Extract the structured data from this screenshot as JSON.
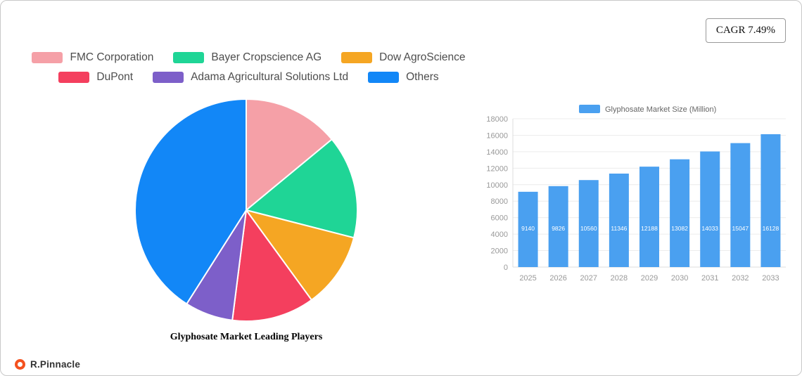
{
  "page": {
    "cagr_label": "CAGR 7.49%",
    "brand": "R.Pinnacle"
  },
  "chart_data": [
    {
      "type": "pie",
      "title": "Glyphosate Market Leading Players",
      "labels": [
        "FMC Corporation",
        "Bayer Cropscience AG",
        "Dow AgroScience",
        "DuPont",
        "Adama Agricultural Solutions Ltd",
        "Others"
      ],
      "values": [
        14,
        15,
        11,
        12,
        7,
        41
      ],
      "colors": [
        "#F5A0A7",
        "#1FD596",
        "#F5A623",
        "#F43F5E",
        "#7D5FC9",
        "#1287F7"
      ],
      "legend_position": "top",
      "legend_rows": [
        [
          0,
          1,
          2
        ],
        [
          3,
          4,
          5
        ]
      ],
      "start_angle_deg": 0,
      "direction": "clockwise"
    },
    {
      "type": "bar",
      "legend": "Glyphosate Market Size (Million)",
      "categories": [
        "2025",
        "2026",
        "2027",
        "2028",
        "2029",
        "2030",
        "2031",
        "2032",
        "2033"
      ],
      "values": [
        9140,
        9826,
        10560,
        11346,
        12188,
        13082,
        14033,
        15047,
        16128
      ],
      "bar_color": "#4AA0F0",
      "ylim": [
        0,
        18000
      ],
      "ytick_step": 2000,
      "grid": true,
      "value_labels": "inside-white"
    }
  ]
}
